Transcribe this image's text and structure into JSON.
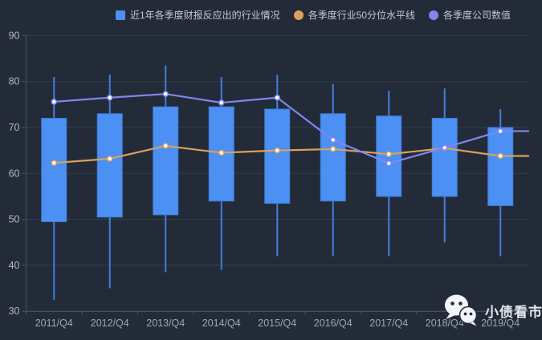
{
  "colors": {
    "background": "#232b38",
    "gridline": "#323c4c",
    "axis_line": "#4a5568",
    "x_label": "#9aa5bf",
    "y_label": "#b3b9c6",
    "box_fill": "#4b90f2",
    "box_stroke": "#3e7fdd",
    "line_percentile": "#d9a05e",
    "line_company": "#8186f0",
    "marker_fill": "#ffffff",
    "legend_text": "#c3c8d4",
    "watermark_text": "#edf0f5"
  },
  "legend": {
    "items": [
      {
        "label": "近1年各季度财报反应出的行业情况",
        "shape": "square",
        "color": "#4b90f2"
      },
      {
        "label": "各季度行业50分位水平线",
        "shape": "circle",
        "color": "#d9a05e"
      },
      {
        "label": "各季度公司数值",
        "shape": "circle",
        "color": "#8186f0"
      }
    ]
  },
  "watermark": {
    "icon": "wechat-icon",
    "text": "小债看市"
  },
  "chart_data": {
    "type": "candlestick+line",
    "title": "",
    "xlabel": "",
    "ylabel": "",
    "categories": [
      "2011/Q4",
      "2012/Q4",
      "2013/Q4",
      "2014/Q4",
      "2015/Q4",
      "2016/Q4",
      "2017/Q4",
      "2018/Q4",
      "2019/Q4"
    ],
    "ylim": [
      30,
      90
    ],
    "ytick_step": 10,
    "grid": "horizontal-only",
    "legend_position": "top",
    "series": [
      {
        "name": "近1年各季度财报反应出的行业情况",
        "type": "candlestick",
        "color": "#4b90f2",
        "note": "values are [low, boxBottom, boxTop, high]",
        "values": [
          [
            32.5,
            49.5,
            72.0,
            81.0
          ],
          [
            35.0,
            50.5,
            73.0,
            81.5
          ],
          [
            38.5,
            51.0,
            74.5,
            83.5
          ],
          [
            39.0,
            54.0,
            74.5,
            81.0
          ],
          [
            42.0,
            53.5,
            74.0,
            81.5
          ],
          [
            42.0,
            54.0,
            73.0,
            79.5
          ],
          [
            42.0,
            55.0,
            72.5,
            78.0
          ],
          [
            45.0,
            55.0,
            72.0,
            78.5
          ],
          [
            42.0,
            53.0,
            70.0,
            74.0
          ]
        ]
      },
      {
        "name": "各季度行业50分位水平线",
        "type": "line",
        "color": "#d9a05e",
        "extends_to_right_edge": true,
        "values": [
          62.3,
          63.2,
          66.0,
          64.5,
          65.0,
          65.3,
          64.2,
          65.5,
          63.8
        ]
      },
      {
        "name": "各季度公司数值",
        "type": "line",
        "color": "#8186f0",
        "extends_to_right_edge": true,
        "values": [
          75.6,
          76.5,
          77.3,
          75.4,
          76.5,
          67.3,
          62.2,
          65.6,
          69.2
        ]
      }
    ]
  }
}
